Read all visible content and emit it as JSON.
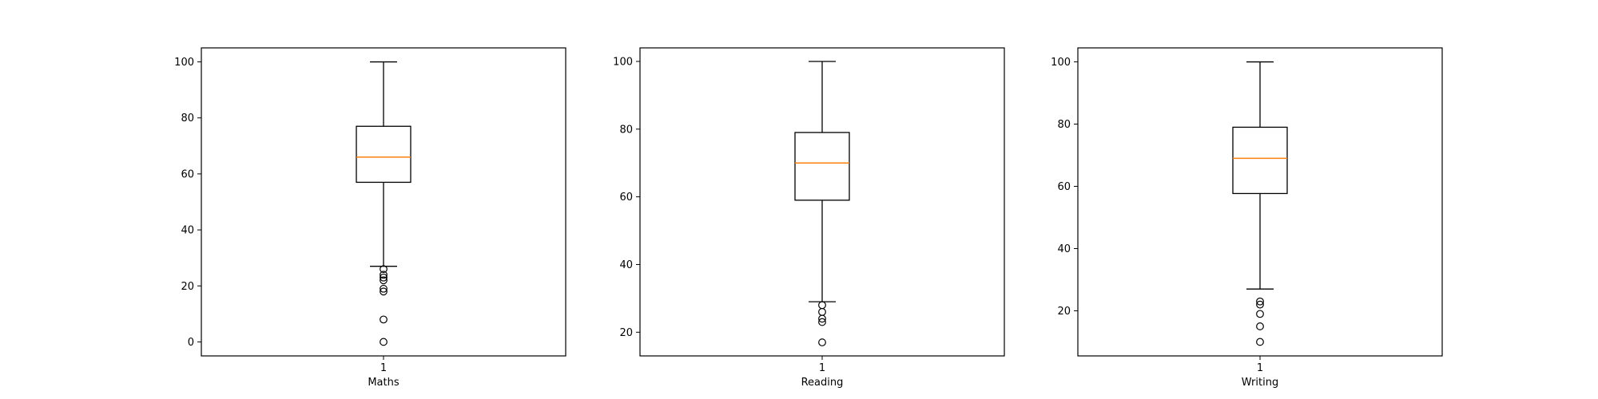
{
  "chart_data": [
    {
      "type": "box",
      "xlabel": "Maths",
      "x_tick_labels": [
        "1"
      ],
      "ylim": [
        -5,
        105
      ],
      "yticks": [
        0,
        20,
        40,
        60,
        80,
        100
      ],
      "box": {
        "whisker_low": 27,
        "q1": 57,
        "median": 66,
        "q3": 77,
        "whisker_high": 100
      },
      "outliers": [
        26,
        24,
        23,
        22,
        19,
        18,
        8,
        0
      ],
      "colors": {
        "box": "#000000",
        "median": "#ff7f0e"
      }
    },
    {
      "type": "box",
      "xlabel": "Reading",
      "x_tick_labels": [
        "1"
      ],
      "ylim": [
        13,
        104
      ],
      "yticks": [
        20,
        40,
        60,
        80,
        100
      ],
      "box": {
        "whisker_low": 29,
        "q1": 59,
        "median": 70,
        "q3": 79,
        "whisker_high": 100
      },
      "outliers": [
        28,
        26,
        24,
        23,
        17
      ],
      "colors": {
        "box": "#000000",
        "median": "#ff7f0e"
      }
    },
    {
      "type": "box",
      "xlabel": "Writing",
      "x_tick_labels": [
        "1"
      ],
      "ylim": [
        5.5,
        104.5
      ],
      "yticks": [
        20,
        40,
        60,
        80,
        100
      ],
      "box": {
        "whisker_low": 27,
        "q1": 57.7,
        "median": 69,
        "q3": 79,
        "whisker_high": 100
      },
      "outliers": [
        23,
        22,
        19,
        15,
        10
      ],
      "colors": {
        "box": "#000000",
        "median": "#ff7f0e"
      }
    }
  ]
}
